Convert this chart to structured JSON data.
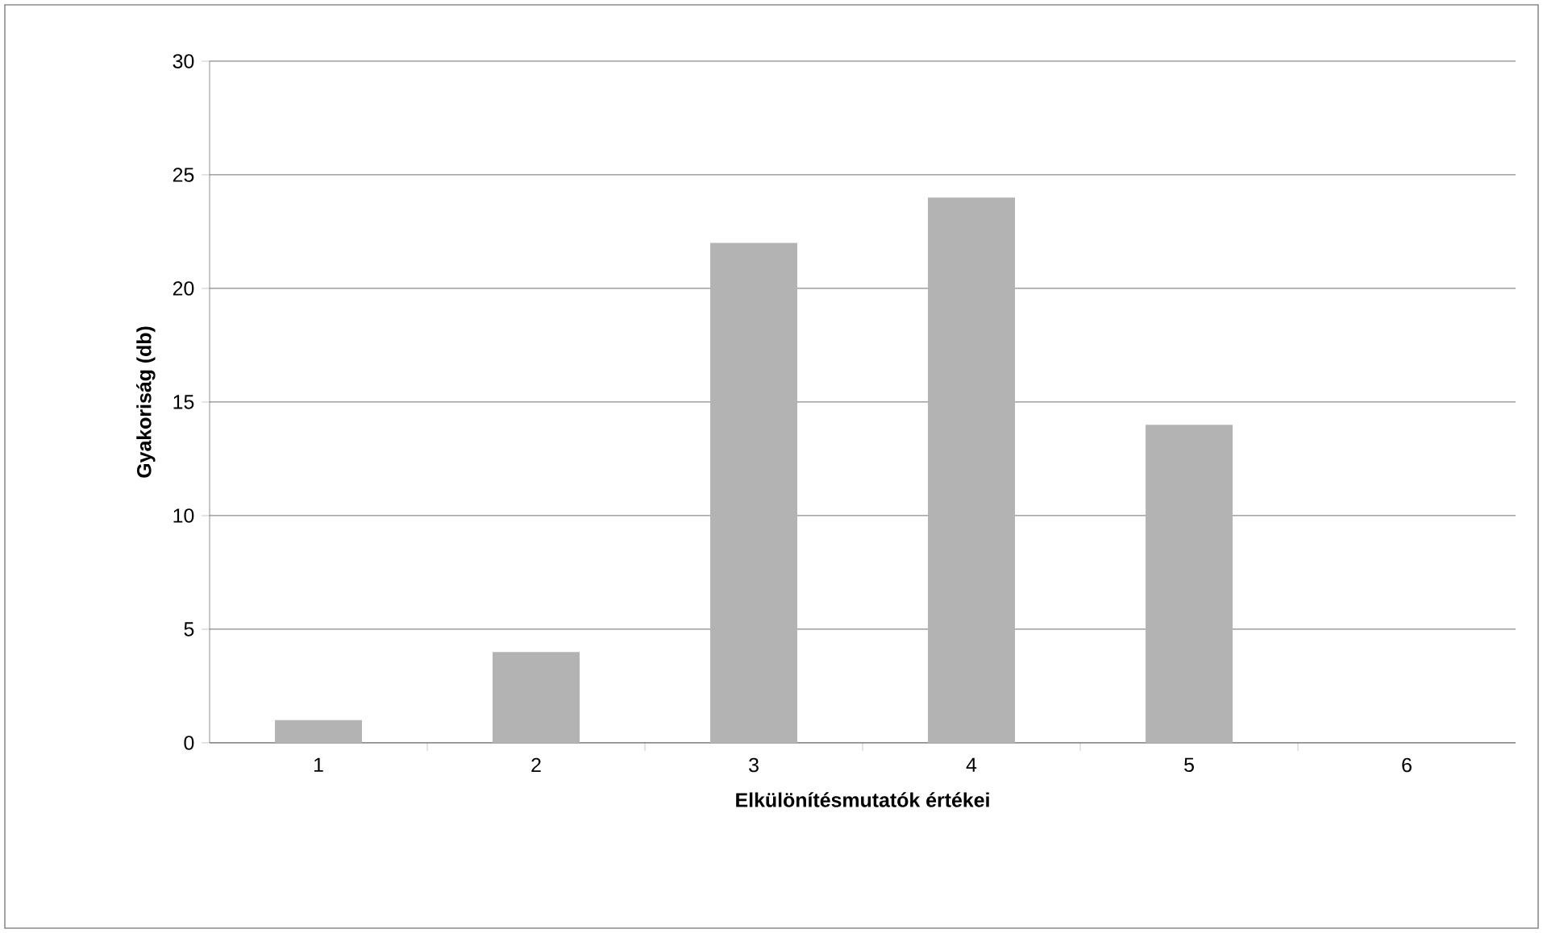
{
  "chart_data": {
    "type": "bar",
    "xlabel": "Elkülönítésmutatók értékei",
    "ylabel": "Gyakoriság (db)",
    "categories": [
      "1",
      "2",
      "3",
      "4",
      "5",
      "6"
    ],
    "values": [
      1,
      4,
      22,
      24,
      14,
      0
    ],
    "color": "#b3b3b3",
    "ylim": [
      0,
      30
    ],
    "yticks": [
      0,
      5,
      10,
      15,
      20,
      25,
      30
    ],
    "grid": "y"
  }
}
